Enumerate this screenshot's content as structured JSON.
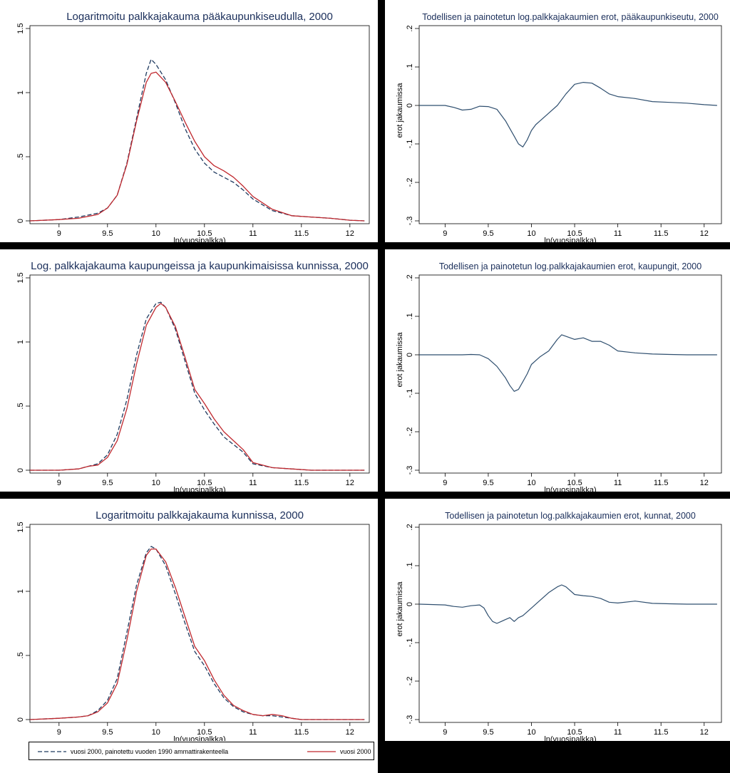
{
  "colors": {
    "background": "#000000",
    "panel": "#ffffff",
    "weighted_line": "#1f3a5f",
    "actual_line": "#c0282e",
    "diff_line": "#2f4f6f",
    "axis": "#000000",
    "title": "#1a2e5a"
  },
  "chart_data": [
    {
      "type": "line",
      "title": "Logaritmoitu palkkajakauma pääkaupunkiseudulla, 2000",
      "xlabel": "ln(vuosipalkka)",
      "ylabel": "",
      "xlim": [
        8.7,
        12.2
      ],
      "ylim": [
        0,
        1.5
      ],
      "xticks": [
        "9",
        "9.5",
        "10",
        "10.5",
        "11",
        "11.5",
        "12"
      ],
      "yticks": [
        "0",
        ".5",
        "1",
        "1.5"
      ],
      "series": [
        {
          "key": "weighted",
          "style": "dashed",
          "x": [
            8.7,
            9.0,
            9.2,
            9.4,
            9.5,
            9.6,
            9.7,
            9.8,
            9.9,
            9.95,
            10.0,
            10.1,
            10.2,
            10.3,
            10.4,
            10.5,
            10.6,
            10.7,
            10.8,
            10.9,
            11.0,
            11.2,
            11.4,
            11.6,
            11.8,
            12.0,
            12.15
          ],
          "y": [
            0,
            0.01,
            0.03,
            0.06,
            0.1,
            0.2,
            0.45,
            0.8,
            1.15,
            1.26,
            1.22,
            1.1,
            0.92,
            0.72,
            0.56,
            0.45,
            0.38,
            0.34,
            0.3,
            0.24,
            0.17,
            0.08,
            0.04,
            0.03,
            0.02,
            0.005,
            0
          ]
        },
        {
          "key": "actual",
          "style": "solid",
          "x": [
            8.7,
            9.0,
            9.2,
            9.4,
            9.5,
            9.6,
            9.7,
            9.8,
            9.9,
            9.95,
            10.0,
            10.1,
            10.2,
            10.3,
            10.4,
            10.5,
            10.6,
            10.7,
            10.8,
            10.9,
            11.0,
            11.2,
            11.4,
            11.6,
            11.8,
            12.0,
            12.15
          ],
          "y": [
            0,
            0.01,
            0.02,
            0.05,
            0.1,
            0.2,
            0.44,
            0.78,
            1.08,
            1.15,
            1.16,
            1.08,
            0.93,
            0.77,
            0.62,
            0.5,
            0.43,
            0.39,
            0.34,
            0.27,
            0.19,
            0.09,
            0.04,
            0.03,
            0.02,
            0.005,
            0
          ]
        }
      ]
    },
    {
      "type": "line",
      "title": "Todellisen ja painotetun log.palkkajakaumien erot, pääkaupunkiseutu, 2000",
      "xlabel": "ln(vuosipalkka)",
      "ylabel": "erot jakaumissa",
      "xlim": [
        8.7,
        12.2
      ],
      "ylim": [
        -0.3,
        0.2
      ],
      "xticks": [
        "9",
        "9.5",
        "10",
        "10.5",
        "11",
        "11.5",
        "12"
      ],
      "yticks": [
        "-.3",
        "-.2",
        "-.1",
        "0",
        ".1",
        ".2"
      ],
      "series": [
        {
          "key": "diff",
          "style": "solid",
          "x": [
            8.7,
            9.0,
            9.1,
            9.2,
            9.3,
            9.4,
            9.5,
            9.6,
            9.7,
            9.75,
            9.8,
            9.85,
            9.9,
            9.95,
            10.0,
            10.05,
            10.1,
            10.2,
            10.3,
            10.4,
            10.5,
            10.6,
            10.7,
            10.8,
            10.9,
            11.0,
            11.2,
            11.4,
            11.6,
            11.8,
            12.0,
            12.15
          ],
          "y": [
            0,
            0,
            -0.005,
            -0.012,
            -0.01,
            -0.002,
            -0.003,
            -0.01,
            -0.04,
            -0.06,
            -0.08,
            -0.1,
            -0.108,
            -0.09,
            -0.065,
            -0.05,
            -0.04,
            -0.02,
            0.0,
            0.03,
            0.055,
            0.06,
            0.058,
            0.045,
            0.03,
            0.023,
            0.018,
            0.01,
            0.008,
            0.006,
            0.002,
            0
          ]
        }
      ]
    },
    {
      "type": "line",
      "title": "Log. palkkajakauma kaupungeissa ja kaupunkimaisissa kunnissa, 2000",
      "xlabel": "ln(vuosipalkka)",
      "ylabel": "",
      "xlim": [
        8.7,
        12.2
      ],
      "ylim": [
        0,
        1.5
      ],
      "xticks": [
        "9",
        "9.5",
        "10",
        "10.5",
        "11",
        "11.5",
        "12"
      ],
      "yticks": [
        "0",
        ".5",
        "1",
        "1.5"
      ],
      "series": [
        {
          "key": "weighted",
          "style": "dashed",
          "x": [
            8.7,
            9.0,
            9.2,
            9.3,
            9.4,
            9.5,
            9.6,
            9.7,
            9.8,
            9.9,
            10.0,
            10.05,
            10.1,
            10.2,
            10.3,
            10.4,
            10.5,
            10.6,
            10.7,
            10.8,
            10.9,
            11.0,
            11.2,
            11.4,
            11.6,
            11.8,
            12.15
          ],
          "y": [
            0,
            0,
            0.01,
            0.03,
            0.05,
            0.12,
            0.28,
            0.55,
            0.9,
            1.18,
            1.3,
            1.31,
            1.27,
            1.1,
            0.85,
            0.6,
            0.47,
            0.36,
            0.26,
            0.2,
            0.14,
            0.05,
            0.02,
            0.01,
            0,
            0,
            0
          ]
        },
        {
          "key": "actual",
          "style": "solid",
          "x": [
            8.7,
            9.0,
            9.2,
            9.3,
            9.4,
            9.5,
            9.6,
            9.7,
            9.8,
            9.9,
            10.0,
            10.05,
            10.1,
            10.2,
            10.3,
            10.4,
            10.5,
            10.6,
            10.7,
            10.8,
            10.9,
            11.0,
            11.2,
            11.4,
            11.6,
            11.8,
            12.15
          ],
          "y": [
            0,
            0,
            0.01,
            0.03,
            0.04,
            0.1,
            0.23,
            0.48,
            0.83,
            1.13,
            1.27,
            1.3,
            1.27,
            1.12,
            0.88,
            0.63,
            0.52,
            0.4,
            0.3,
            0.23,
            0.16,
            0.06,
            0.02,
            0.01,
            0,
            0,
            0
          ]
        }
      ]
    },
    {
      "type": "line",
      "title": "Todellisen ja painotetun log.palkkajakaumien erot, kaupungit, 2000",
      "xlabel": "ln(vuosipalkka)",
      "ylabel": "erot jakaumissa",
      "xlim": [
        8.7,
        12.2
      ],
      "ylim": [
        -0.3,
        0.2
      ],
      "xticks": [
        "9",
        "9.5",
        "10",
        "10.5",
        "11",
        "11.5",
        "12"
      ],
      "yticks": [
        "-.3",
        "-.2",
        "-.1",
        "0",
        ".1",
        ".2"
      ],
      "series": [
        {
          "key": "diff",
          "style": "solid",
          "x": [
            8.7,
            9.0,
            9.2,
            9.3,
            9.4,
            9.5,
            9.6,
            9.7,
            9.75,
            9.8,
            9.85,
            9.9,
            9.95,
            10.0,
            10.1,
            10.2,
            10.3,
            10.35,
            10.4,
            10.5,
            10.6,
            10.7,
            10.8,
            10.9,
            11.0,
            11.2,
            11.4,
            11.6,
            11.8,
            12.0,
            12.15
          ],
          "y": [
            0,
            0,
            0,
            0.001,
            0,
            -0.01,
            -0.03,
            -0.06,
            -0.08,
            -0.095,
            -0.09,
            -0.07,
            -0.05,
            -0.025,
            -0.005,
            0.01,
            0.04,
            0.052,
            0.048,
            0.04,
            0.044,
            0.035,
            0.035,
            0.025,
            0.01,
            0.005,
            0.002,
            0.001,
            0,
            0,
            0
          ]
        }
      ]
    },
    {
      "type": "line",
      "title": "Logaritmoitu palkkajakauma kunnissa, 2000",
      "xlabel": "ln(vuosipalkka)",
      "ylabel": "",
      "xlim": [
        8.7,
        12.2
      ],
      "ylim": [
        0,
        1.5
      ],
      "xticks": [
        "9",
        "9.5",
        "10",
        "10.5",
        "11",
        "11.5",
        "12"
      ],
      "yticks": [
        "0",
        ".5",
        "1",
        "1.5"
      ],
      "series": [
        {
          "key": "weighted",
          "style": "dashed",
          "x": [
            8.7,
            9.0,
            9.2,
            9.3,
            9.4,
            9.5,
            9.6,
            9.7,
            9.8,
            9.9,
            9.95,
            10.0,
            10.1,
            10.2,
            10.3,
            10.4,
            10.5,
            10.6,
            10.7,
            10.8,
            10.9,
            11.0,
            11.1,
            11.2,
            11.3,
            11.4,
            11.5,
            11.6,
            11.8,
            12.15
          ],
          "y": [
            0,
            0.01,
            0.02,
            0.03,
            0.07,
            0.15,
            0.32,
            0.68,
            1.05,
            1.3,
            1.35,
            1.33,
            1.2,
            0.98,
            0.75,
            0.53,
            0.42,
            0.28,
            0.17,
            0.1,
            0.06,
            0.04,
            0.03,
            0.03,
            0.02,
            0.01,
            0,
            0,
            0,
            0
          ]
        },
        {
          "key": "actual",
          "style": "solid",
          "x": [
            8.7,
            9.0,
            9.2,
            9.3,
            9.4,
            9.5,
            9.6,
            9.7,
            9.8,
            9.9,
            9.95,
            10.0,
            10.1,
            10.2,
            10.3,
            10.4,
            10.5,
            10.6,
            10.7,
            10.8,
            10.9,
            11.0,
            11.1,
            11.2,
            11.3,
            11.4,
            11.5,
            11.6,
            11.8,
            12.15
          ],
          "y": [
            0,
            0.01,
            0.02,
            0.03,
            0.06,
            0.13,
            0.28,
            0.62,
            1.0,
            1.28,
            1.33,
            1.33,
            1.23,
            1.03,
            0.8,
            0.57,
            0.46,
            0.31,
            0.19,
            0.11,
            0.07,
            0.04,
            0.03,
            0.04,
            0.03,
            0.01,
            0,
            0,
            0,
            0
          ]
        }
      ]
    },
    {
      "type": "line",
      "title": "Todellisen ja painotetun log.palkkajakaumien erot, kunnat, 2000",
      "xlabel": "ln(vuosipalkka)",
      "ylabel": "erot jakaumissa",
      "xlim": [
        8.7,
        12.2
      ],
      "ylim": [
        -0.3,
        0.2
      ],
      "xticks": [
        "9",
        "9.5",
        "10",
        "10.5",
        "11",
        "11.5",
        "12"
      ],
      "yticks": [
        "-.3",
        "-.2",
        "-.1",
        "0",
        ".1",
        ".2"
      ],
      "series": [
        {
          "key": "diff",
          "style": "solid",
          "x": [
            8.7,
            9.0,
            9.1,
            9.2,
            9.3,
            9.4,
            9.45,
            9.5,
            9.55,
            9.6,
            9.65,
            9.7,
            9.75,
            9.8,
            9.85,
            9.9,
            10.0,
            10.1,
            10.2,
            10.3,
            10.35,
            10.4,
            10.5,
            10.6,
            10.7,
            10.8,
            10.9,
            11.0,
            11.2,
            11.4,
            11.6,
            11.8,
            12.0,
            12.15
          ],
          "y": [
            0,
            -0.002,
            -0.006,
            -0.008,
            -0.004,
            -0.002,
            -0.01,
            -0.03,
            -0.045,
            -0.05,
            -0.045,
            -0.04,
            -0.035,
            -0.045,
            -0.035,
            -0.03,
            -0.01,
            0.01,
            0.03,
            0.045,
            0.05,
            0.045,
            0.025,
            0.022,
            0.02,
            0.015,
            0.005,
            0.003,
            0.008,
            0.002,
            0.001,
            0,
            0,
            0
          ]
        }
      ]
    }
  ],
  "legend": {
    "weighted_label": "vuosi 2000, painotettu vuoden 1990 ammattirakenteella",
    "actual_label": "vuosi 2000"
  }
}
